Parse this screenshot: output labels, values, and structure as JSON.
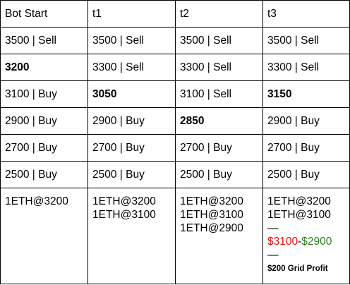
{
  "headers": [
    "Bot Start",
    "t1",
    "t2",
    "t3"
  ],
  "rows": [
    [
      {
        "text": "3500 | Sell",
        "kind": "sell"
      },
      {
        "text": "3500 | Sell",
        "kind": "sell"
      },
      {
        "text": "3500 | Sell",
        "kind": "sell"
      },
      {
        "text": "3500 | Sell",
        "kind": "sell"
      }
    ],
    [
      {
        "text": "3200",
        "kind": "price"
      },
      {
        "text": "3300 | Sell",
        "kind": "sell"
      },
      {
        "text": "3300 | Sell",
        "kind": "sell"
      },
      {
        "text": "3300 | Sell",
        "kind": "sell"
      }
    ],
    [
      {
        "text": "3100 | Buy",
        "kind": "buy"
      },
      {
        "text": "3050",
        "kind": "price"
      },
      {
        "text": "3100 | Sell",
        "kind": "sell"
      },
      {
        "text": "3150",
        "kind": "price"
      }
    ],
    [
      {
        "text": "2900 | Buy",
        "kind": "buy"
      },
      {
        "text": "2900 | Buy",
        "kind": "buy"
      },
      {
        "text": "2850",
        "kind": "price"
      },
      {
        "text": "2900 | Buy",
        "kind": "buy"
      }
    ],
    [
      {
        "text": "2700 | Buy",
        "kind": "buy"
      },
      {
        "text": "2700 | Buy",
        "kind": "buy"
      },
      {
        "text": "2700 | Buy",
        "kind": "buy"
      },
      {
        "text": "2700 | Buy",
        "kind": "buy"
      }
    ],
    [
      {
        "text": "2500 | Buy",
        "kind": "buy"
      },
      {
        "text": "2500 | Buy",
        "kind": "buy"
      },
      {
        "text": "2500 | Buy",
        "kind": "buy"
      },
      {
        "text": "2500 | Buy",
        "kind": "buy"
      }
    ]
  ],
  "holdings": [
    [
      "1ETH@3200"
    ],
    [
      "1ETH@3200",
      "1ETH@3100"
    ],
    [
      "1ETH@3200",
      "1ETH@3100",
      "1ETH@2900"
    ],
    [
      "1ETH@3200",
      "1ETH@3100"
    ]
  ],
  "t3_summary": {
    "dash": "—",
    "sell_price": "$3100",
    "separator": "-",
    "buy_price": "$2900",
    "dash2": "—",
    "profit": "$200 Grid Profit"
  },
  "colors": {
    "sell": "#e8110e",
    "buy": "#2e7d1e",
    "price": "#000000"
  }
}
